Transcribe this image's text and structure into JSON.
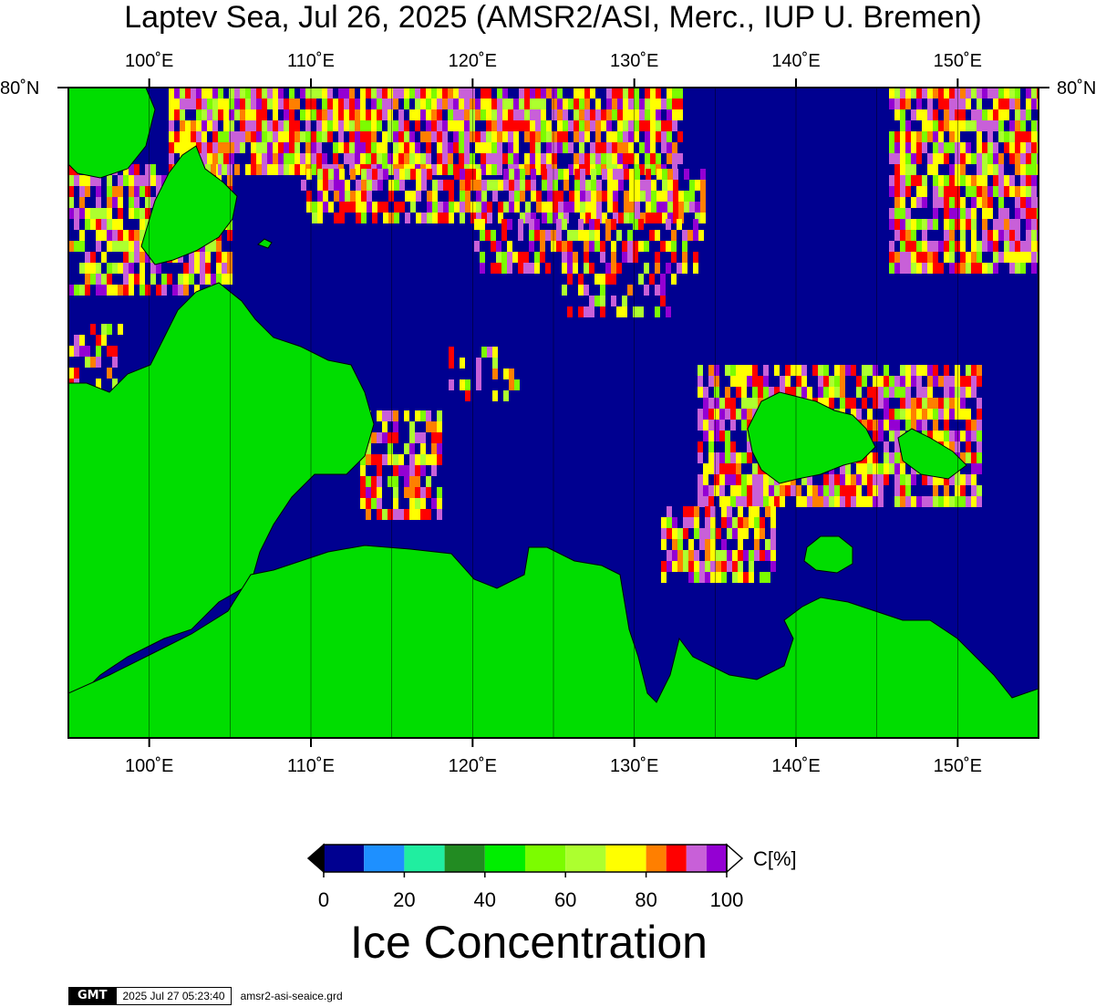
{
  "title": "Laptev Sea, Jul 26, 2025 (AMSR2/ASI, Merc., IUP U. Bremen)",
  "map": {
    "longitude_labels": [
      "100˚E",
      "110˚E",
      "120˚E",
      "130˚E",
      "140˚E",
      "150˚E"
    ],
    "longitudes": [
      100,
      110,
      120,
      130,
      140,
      150
    ],
    "latitude_label": "80˚N",
    "lon_range": [
      95,
      155
    ],
    "ocean_color": "#000090",
    "land_color": "#00dd00"
  },
  "colorbar": {
    "unit": "C[%]",
    "tick_labels": [
      "0",
      "20",
      "40",
      "60",
      "80",
      "100"
    ],
    "colors": [
      "#000090",
      "#1e90ff",
      "#20eea0",
      "#228b22",
      "#00ee00",
      "#7cfc00",
      "#adff2f",
      "#ffff00",
      "#ff7f00",
      "#ff0000",
      "#c860d8",
      "#9400d3"
    ],
    "title": "Ice Concentration"
  },
  "footer": {
    "logo": "GMT",
    "timestamp": "2025 Jul 27 05:23:40",
    "file": "amsr2-asi-seaice.grd"
  }
}
